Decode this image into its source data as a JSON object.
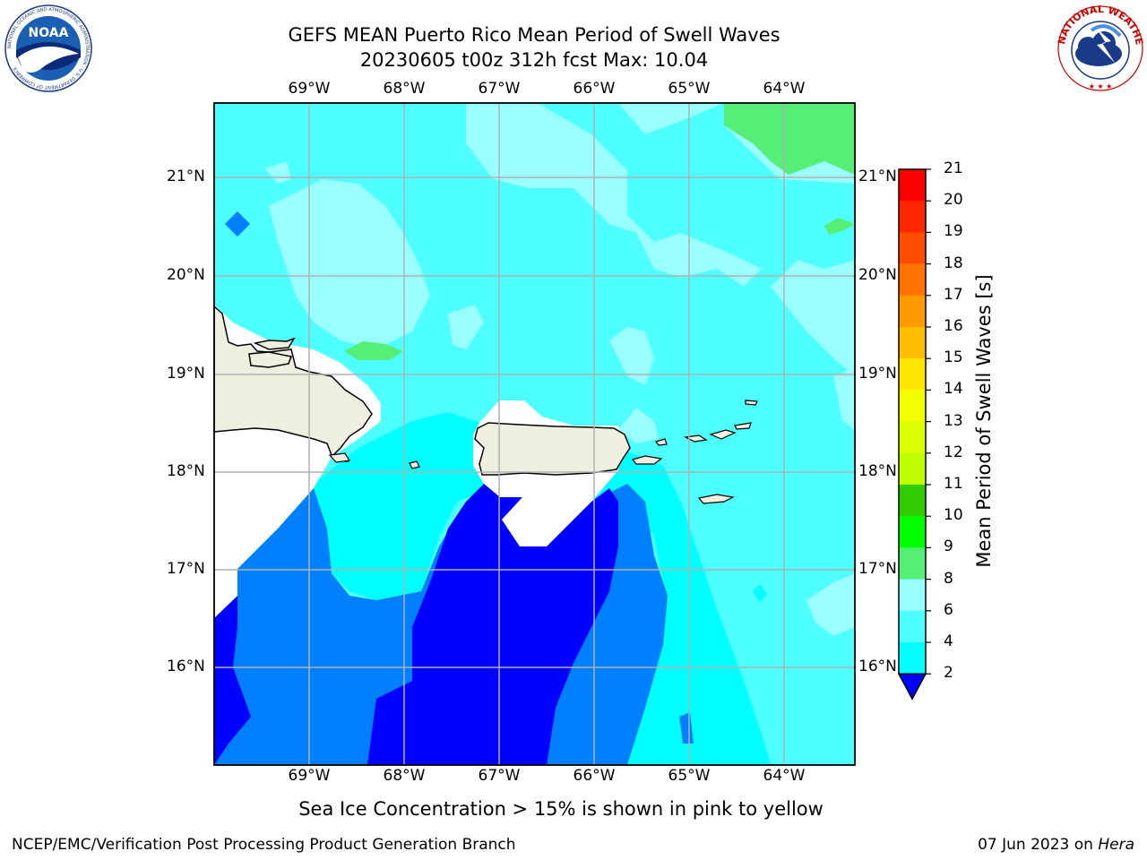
{
  "title_line1": "GEFS MEAN Puerto Rico Mean Period of Swell Waves",
  "title_line2": "20230605 t00z 312h fcst   Max: 10.04",
  "lon_labels": [
    "69°W",
    "68°W",
    "67°W",
    "66°W",
    "65°W",
    "64°W"
  ],
  "lat_labels": [
    "21°N",
    "20°N",
    "19°N",
    "18°N",
    "17°N",
    "16°N"
  ],
  "colorbar": {
    "label": "Mean Period of Swell Waves [s]",
    "ticks": [
      "21",
      "20",
      "19",
      "18",
      "17",
      "16",
      "15",
      "14",
      "13",
      "12",
      "11",
      "10",
      "9",
      "8",
      "6",
      "4",
      "2"
    ],
    "colors": [
      "#ff0000",
      "#ff2600",
      "#ff4d00",
      "#ff7300",
      "#ff9900",
      "#ffbf00",
      "#ffe600",
      "#f2ff00",
      "#d9ff00",
      "#bfff00",
      "#33cc00",
      "#00ff00",
      "#55ee77",
      "#99ffff",
      "#4dffff",
      "#00ffff",
      "#0080ff"
    ],
    "extend_color": "#0000ff"
  },
  "note": "Sea Ice Concentration > 15% is shown in pink to yellow",
  "footer_left": "NCEP/EMC/Verification Post Processing Product Generation Branch",
  "footer_date": "07 Jun 2023 on ",
  "footer_machine": "Hera",
  "logos": {
    "left": {
      "text": "NOAA",
      "ring_text": "NATIONAL OCEANIC AND ATMOSPHERIC ADMINISTRATION · U.S. DEPARTMENT OF COMMERCE"
    },
    "right": {
      "ring_text": "NATIONAL WEATHER SERVICE"
    }
  },
  "map_colors": {
    "c2": "#0000ff",
    "c4": "#0080ff",
    "c6": "#00ffff",
    "c8": "#4dffff",
    "c9": "#99ffff",
    "c10": "#55ee77",
    "land": "#efefe0",
    "nodata": "#ffffff",
    "grid": "#b0b0b0"
  }
}
